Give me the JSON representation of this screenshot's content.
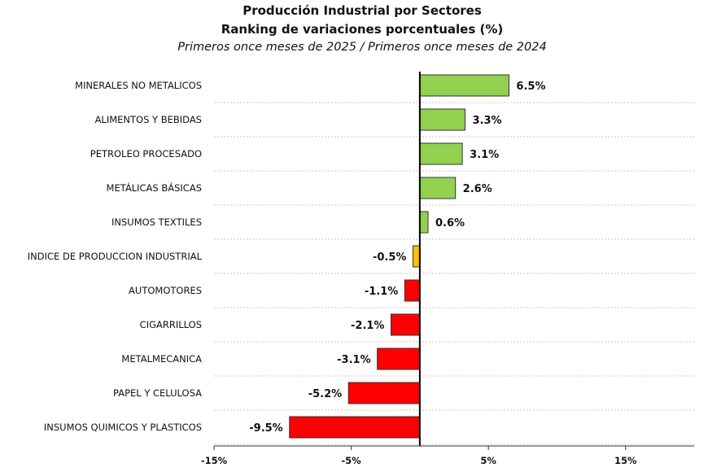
{
  "chart_data": {
    "type": "bar",
    "orientation": "horizontal",
    "title": "Producción Industrial por Sectores",
    "subtitle": "Ranking de variaciones porcentuales (%)",
    "subtitle2": "Primeros once meses de 2025 / Primeros once meses de 2024",
    "categories": [
      "MINERALES NO METALICOS",
      "ALIMENTOS Y BEBIDAS",
      "PETROLEO PROCESADO",
      "METÁLICAS BÁSICAS",
      "INSUMOS TEXTILES",
      "INDICE DE PRODUCCION INDUSTRIAL",
      "AUTOMOTORES",
      "CIGARRILLOS",
      "METALMECANICA",
      "PAPEL Y CELULOSA",
      "INSUMOS QUIMICOS Y PLASTICOS"
    ],
    "values": [
      6.5,
      3.3,
      3.1,
      2.6,
      0.6,
      -0.5,
      -1.1,
      -2.1,
      -3.1,
      -5.2,
      -9.5
    ],
    "data_labels": [
      "6.5%",
      "3.3%",
      "3.1%",
      "2.6%",
      "0.6%",
      "-0.5%",
      "-1.1%",
      "-2.1%",
      "-3.1%",
      "-5.2%",
      "-9.5%"
    ],
    "xlim": [
      -15,
      20
    ],
    "xticks": [
      -15,
      -5,
      5,
      15
    ],
    "xtick_labels": [
      "-15%",
      "-5%",
      "5%",
      "15%"
    ],
    "xlabel": "",
    "ylabel": "",
    "grid": "dotted horizontal separators",
    "colors": {
      "positive": "#92d050",
      "index": "#ffc000",
      "negative": "#ff0000"
    }
  }
}
